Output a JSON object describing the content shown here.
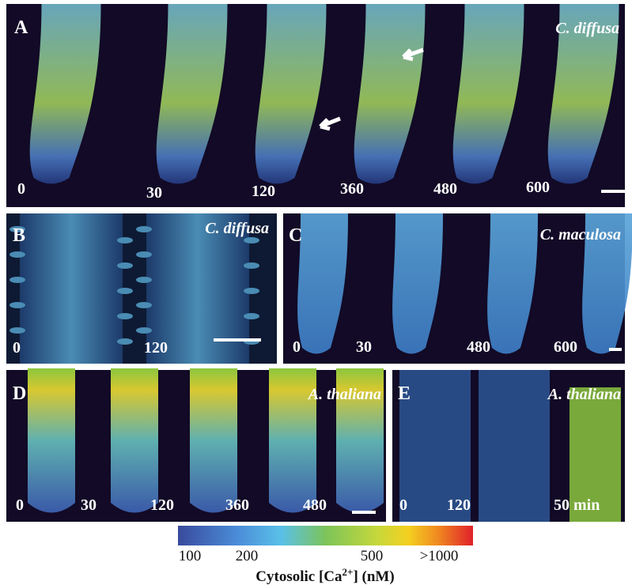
{
  "panels": [
    {
      "label": "A",
      "species": "C. diffusa",
      "times": [
        "0",
        "30",
        "120",
        "360",
        "480",
        "600"
      ]
    },
    {
      "label": "B",
      "species": "C. diffusa",
      "times": [
        "0",
        "120"
      ]
    },
    {
      "label": "C",
      "species": "C. maculosa",
      "times": [
        "0",
        "30",
        "480",
        "600"
      ]
    },
    {
      "label": "D",
      "species": "A. thaliana",
      "times": [
        "0",
        "30",
        "120",
        "360",
        "480"
      ]
    },
    {
      "label": "E",
      "species": "A. thaliana",
      "times": [
        "0",
        "120",
        "50 min"
      ]
    }
  ],
  "colorbar": {
    "ticks": [
      "100",
      "200",
      "500",
      ">1000"
    ],
    "title": "Cytosolic [Ca",
    "title_sup": "2+",
    "title_end": "] (nM)"
  }
}
